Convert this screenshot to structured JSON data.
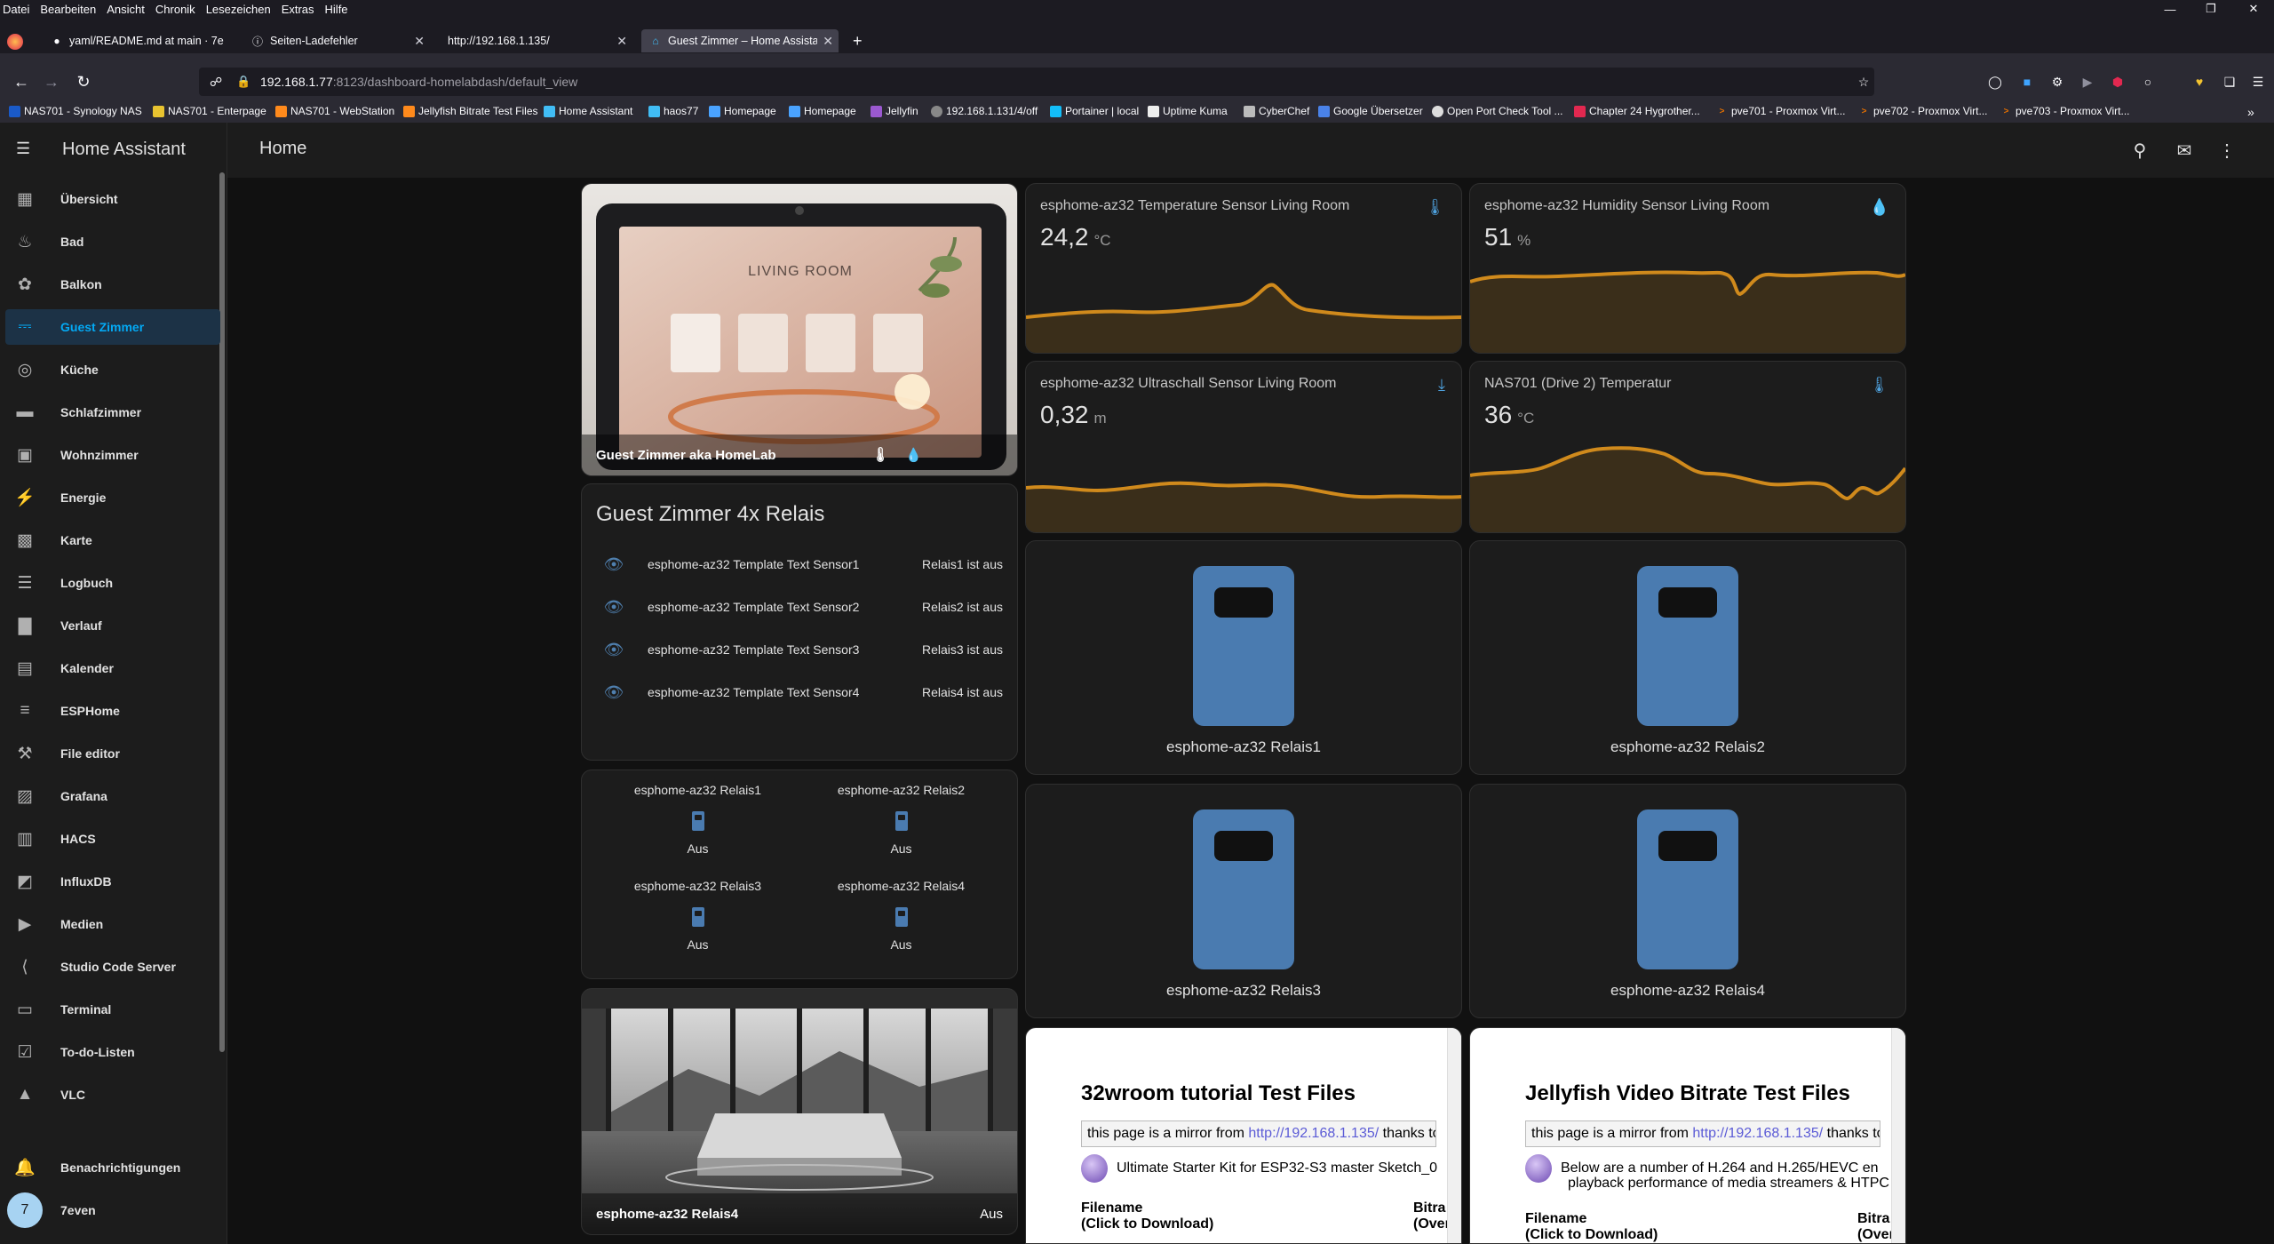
{
  "browser": {
    "menu": [
      "Datei",
      "Bearbeiten",
      "Ansicht",
      "Chronik",
      "Lesezeichen",
      "Extras",
      "Hilfe"
    ],
    "tabs": [
      {
        "title": "yaml/README.md at main · 7e"
      },
      {
        "title": "Seiten-Ladefehler"
      },
      {
        "title": "http://192.168.1.135/"
      },
      {
        "title": "Guest Zimmer – Home Assistan"
      }
    ],
    "url_host": "192.168.1.77",
    "url_rest": ":8123/dashboard-homelabdash/default_view",
    "bookmarks": [
      "NAS701 - Synology NAS",
      "NAS701 - Enterpage",
      "NAS701 - WebStation",
      "Jellyfish Bitrate Test Files",
      "Home Assistant",
      "haos77",
      "Homepage",
      "Homepage",
      "Jellyfin",
      "192.168.1.131/4/off",
      "Portainer | local",
      "Uptime Kuma",
      "CyberChef",
      "Google Übersetzer",
      "Open Port Check Tool ...",
      "Chapter 24 Hygrother...",
      "pve701 - Proxmox Virt...",
      "pve702 - Proxmox Virt...",
      "pve703 - Proxmox Virt..."
    ]
  },
  "ha": {
    "app_title": "Home Assistant",
    "page_title": "Home",
    "sidebar": [
      {
        "label": "Übersicht",
        "icon": "dashboard-icon"
      },
      {
        "label": "Bad",
        "icon": "bathtub-icon"
      },
      {
        "label": "Balkon",
        "icon": "flower-icon"
      },
      {
        "label": "Guest Zimmer",
        "icon": "bed-icon"
      },
      {
        "label": "Küche",
        "icon": "stove-icon"
      },
      {
        "label": "Schlafzimmer",
        "icon": "bed-double-icon"
      },
      {
        "label": "Wohnzimmer",
        "icon": "sofa-icon"
      },
      {
        "label": "Energie",
        "icon": "lightning-icon"
      },
      {
        "label": "Karte",
        "icon": "map-icon"
      },
      {
        "label": "Logbuch",
        "icon": "list-icon"
      },
      {
        "label": "Verlauf",
        "icon": "chart-icon"
      },
      {
        "label": "Kalender",
        "icon": "calendar-icon"
      },
      {
        "label": "ESPHome",
        "icon": "esphome-icon"
      },
      {
        "label": "File editor",
        "icon": "wrench-icon"
      },
      {
        "label": "Grafana",
        "icon": "grafana-icon"
      },
      {
        "label": "HACS",
        "icon": "hacs-icon"
      },
      {
        "label": "InfluxDB",
        "icon": "influx-icon"
      },
      {
        "label": "Medien",
        "icon": "media-icon"
      },
      {
        "label": "Studio Code Server",
        "icon": "vscode-icon"
      },
      {
        "label": "Terminal",
        "icon": "terminal-icon"
      },
      {
        "label": "To-do-Listen",
        "icon": "todo-icon"
      },
      {
        "label": "VLC",
        "icon": "vlc-icon"
      }
    ],
    "notifications_label": "Benachrichtigungen",
    "user": {
      "initial": "7",
      "name": "7even"
    },
    "picture_card": {
      "caption": "Guest Zimmer aka HomeLab",
      "tablet_heading": "LIVING ROOM"
    },
    "entities_card": {
      "title": "Guest Zimmer 4x Relais",
      "rows": [
        {
          "name": "esphome-az32 Template Text Sensor1",
          "state": "Relais1 ist aus"
        },
        {
          "name": "esphome-az32 Template Text Sensor2",
          "state": "Relais2 ist aus"
        },
        {
          "name": "esphome-az32 Template Text Sensor3",
          "state": "Relais3 ist aus"
        },
        {
          "name": "esphome-az32 Template Text Sensor4",
          "state": "Relais4 ist aus"
        }
      ]
    },
    "glance_card": {
      "items": [
        {
          "name": "esphome-az32 Relais1",
          "state": "Aus"
        },
        {
          "name": "esphome-az32 Relais2",
          "state": "Aus"
        },
        {
          "name": "esphome-az32 Relais3",
          "state": "Aus"
        },
        {
          "name": "esphome-az32 Relais4",
          "state": "Aus"
        }
      ]
    },
    "bottom_picture_card": {
      "name": "esphome-az32 Relais4",
      "state": "Aus"
    },
    "sensors": [
      {
        "name": "esphome-az32 Temperature Sensor Living Room",
        "value": "24,2",
        "unit": "°C",
        "icon": "thermometer-icon"
      },
      {
        "name": "esphome-az32 Humidity Sensor Living Room",
        "value": "51",
        "unit": "%",
        "icon": "water-percent-icon"
      },
      {
        "name": "esphome-az32 Ultraschall Sensor Living Room",
        "value": "0,32",
        "unit": "m",
        "icon": "arrow-expand-vertical-icon"
      },
      {
        "name": "NAS701 (Drive 2) Temperatur",
        "value": "36",
        "unit": "°C",
        "icon": "thermometer-icon"
      }
    ],
    "buttons": [
      {
        "label": "esphome-az32 Relais1"
      },
      {
        "label": "esphome-az32 Relais2"
      },
      {
        "label": "esphome-az32 Relais3"
      },
      {
        "label": "esphome-az32 Relais4"
      }
    ],
    "iframes": [
      {
        "heading": "32wroom tutorial Test Files",
        "mirror_prefix": "this page is a mirror from ",
        "mirror_link": "http://192.168.1.135/",
        "mirror_suffix": " thanks to",
        "desc": "Ultimate Starter Kit for ESP32-S3 master Sketch_0",
        "col1": "Filename",
        "col1b": "(Click to Download)",
        "col2": "Bitra",
        "col2b": "(Over"
      },
      {
        "heading": "Jellyfish Video Bitrate Test Files",
        "mirror_prefix": "this page is a mirror from ",
        "mirror_link": "http://192.168.1.135/",
        "mirror_suffix": " thanks to",
        "desc": "Below are a number of H.264 and H.265/HEVC en",
        "desc2": "playback performance of media streamers & HTPC",
        "col1": "Filename",
        "col1b": "(Click to Download)",
        "col2": "Bitra",
        "col2b": "(Over"
      }
    ],
    "colors": {
      "accent": "#03a9f4",
      "graph": "#d08a1c",
      "icon": "#4a7bb0",
      "card": "#1c1c1c"
    }
  }
}
